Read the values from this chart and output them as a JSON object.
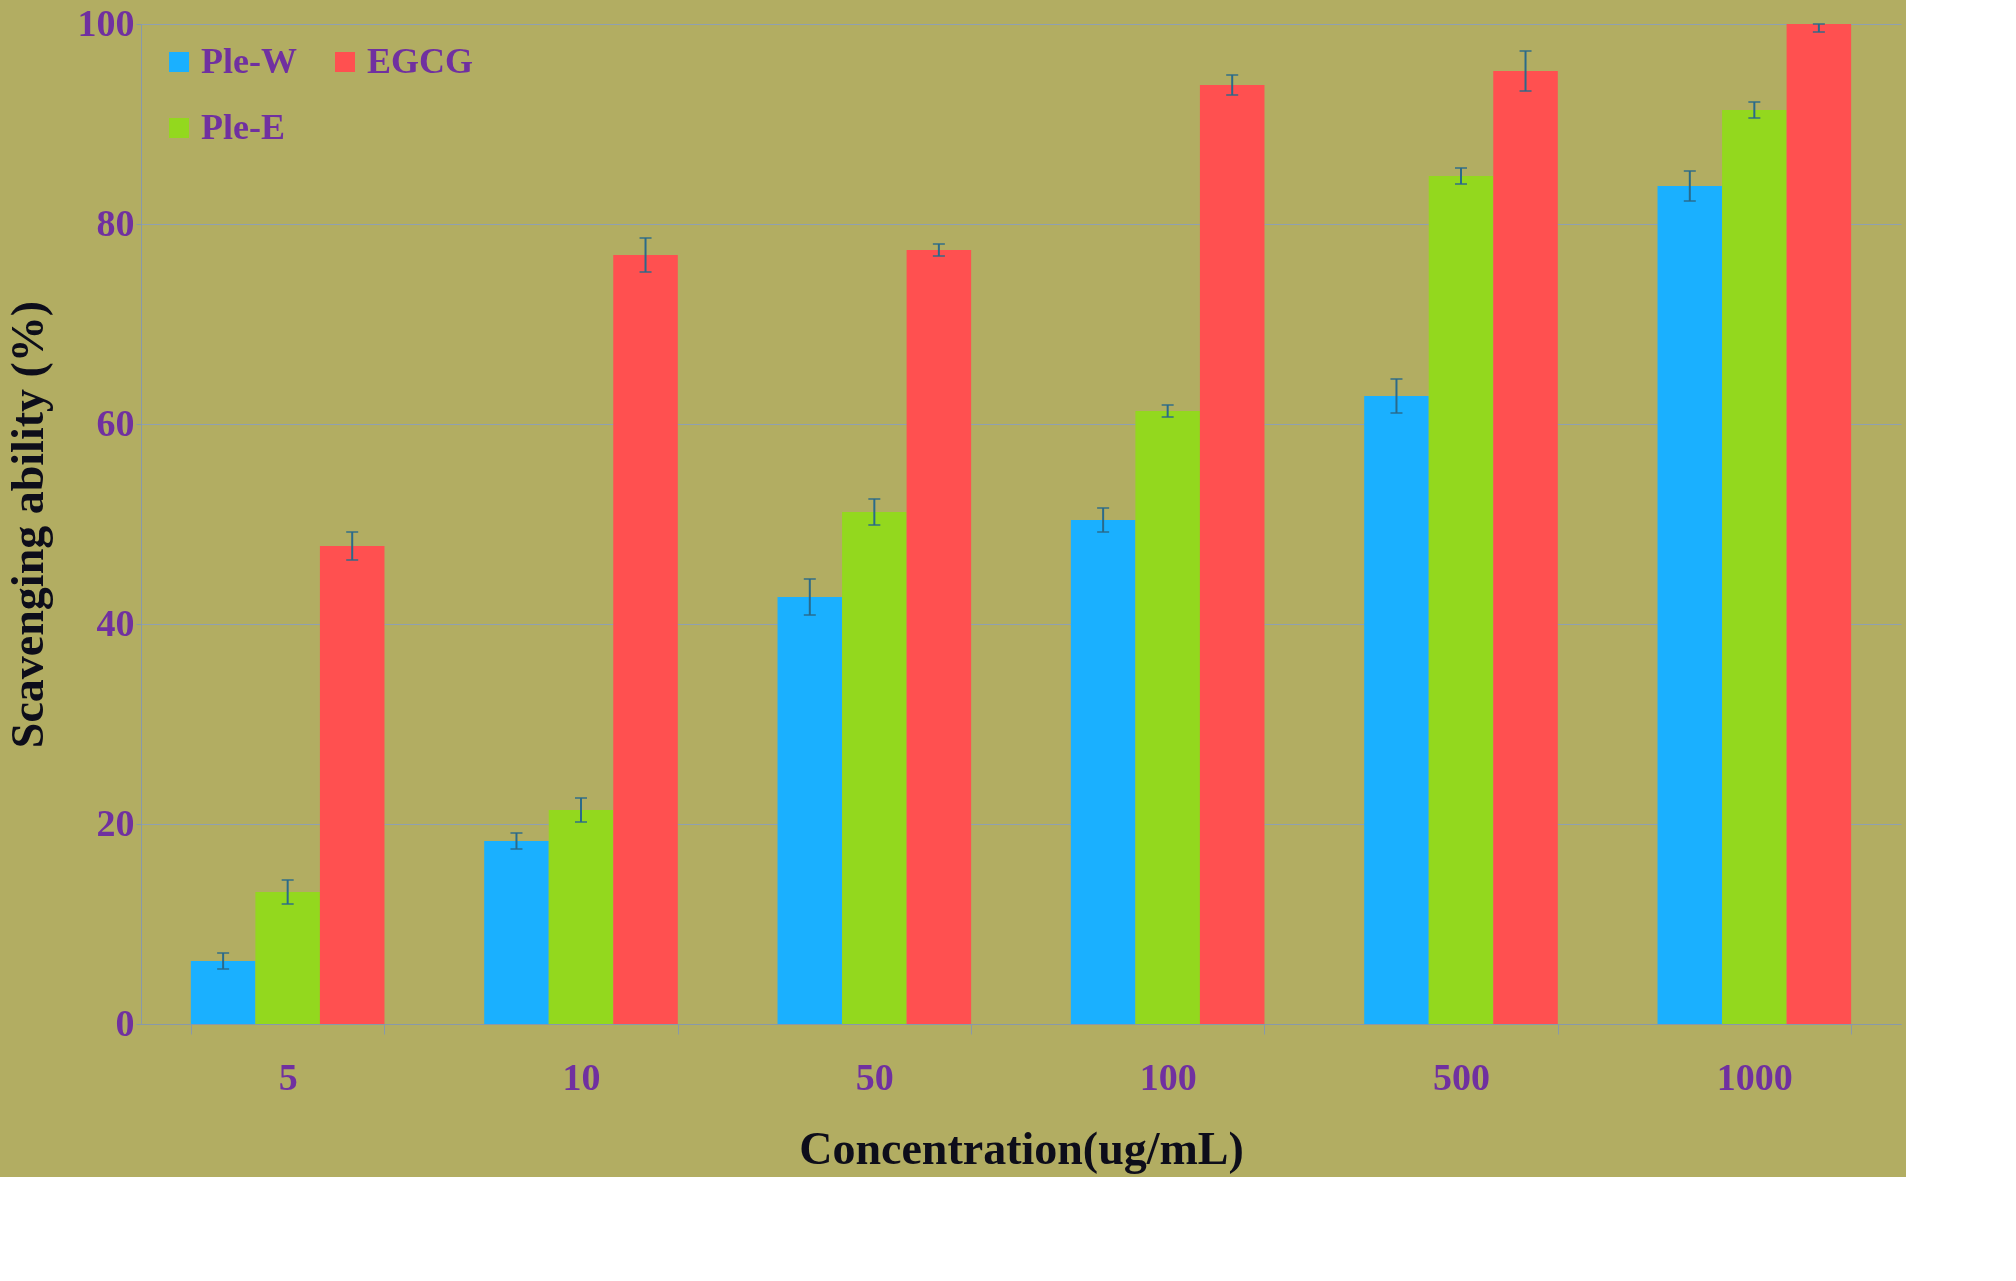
{
  "chart_data": {
    "type": "bar",
    "xlabel": "Concentration(ug/mL)",
    "ylabel": "Scavenging ability (%)",
    "categories": [
      "5",
      "10",
      "50",
      "100",
      "500",
      "1000"
    ],
    "series": [
      {
        "name": "Ple-W",
        "color": "#1ab0ff",
        "values": [
          6.3,
          18.3,
          42.7,
          50.4,
          62.8,
          83.8
        ],
        "errors": [
          0.8,
          0.8,
          1.8,
          1.2,
          1.7,
          1.5
        ]
      },
      {
        "name": "Ple-E",
        "color": "#93d81e",
        "values": [
          13.2,
          21.4,
          51.2,
          61.3,
          84.8,
          91.4
        ],
        "errors": [
          1.2,
          1.2,
          1.3,
          0.6,
          0.8,
          0.8
        ]
      },
      {
        "name": "EGCG",
        "color": "#ff5050",
        "values": [
          47.8,
          76.9,
          77.4,
          93.9,
          95.3,
          100
        ],
        "errors": [
          1.4,
          1.7,
          0.6,
          1.0,
          2.0,
          [
            99.2,
            100
          ]
        ]
      }
    ],
    "ylim": [
      0,
      100
    ],
    "yticks": [
      0,
      20,
      40,
      60,
      80,
      100
    ],
    "grid": "y",
    "legend": "top left"
  }
}
